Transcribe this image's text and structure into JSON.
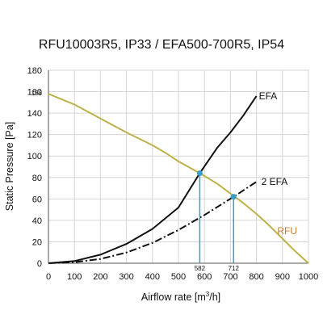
{
  "chart_data": {
    "type": "line",
    "title": "RFU10003R5, IP33 / EFA500-700R5, IP54",
    "xlabel": "Airflow rate [m³/h]",
    "xlabel_main": "Airflow rate [m",
    "xlabel_sup": "3",
    "xlabel_end": "/h]",
    "ylabel": "Static Pressure [Pa]",
    "xlim": [
      0,
      1000
    ],
    "ylim": [
      0,
      180
    ],
    "x_ticks": [
      0,
      100,
      200,
      300,
      400,
      500,
      600,
      700,
      800,
      900,
      1000
    ],
    "y_ticks": [
      0,
      20,
      40,
      60,
      80,
      100,
      120,
      140,
      160,
      180
    ],
    "grid": true,
    "series": [
      {
        "name": "RFU",
        "color": "#bdb24a",
        "dash": "solid",
        "x": [
          0,
          100,
          200,
          300,
          400,
          450,
          500,
          582,
          650,
          700,
          750,
          800,
          850,
          900,
          950,
          1000
        ],
        "y": [
          158,
          148,
          135,
          122,
          110,
          103,
          95,
          84,
          74,
          65,
          56,
          46,
          35,
          23,
          11,
          0
        ]
      },
      {
        "name": "EFA",
        "color": "#111111",
        "dash": "solid",
        "x": [
          0,
          100,
          200,
          300,
          400,
          500,
          582,
          650,
          700,
          750,
          800
        ],
        "y": [
          0,
          2,
          8,
          18,
          32,
          52,
          84,
          108,
          122,
          138,
          156
        ]
      },
      {
        "name": "2 EFA",
        "color": "#111111",
        "dash": "dashdot",
        "x": [
          0,
          100,
          200,
          300,
          400,
          500,
          600,
          712,
          800
        ],
        "y": [
          0,
          1,
          4,
          10,
          19,
          31,
          45,
          62,
          76
        ]
      }
    ],
    "annotations": {
      "y_marker_label": "158",
      "y_marker_value": 158,
      "operating_points": [
        {
          "x": 582,
          "y": 84,
          "label": "582"
        },
        {
          "x": 712,
          "y": 62,
          "label": "712"
        }
      ],
      "marker_color": "#3a9ec9"
    },
    "label_colors": {
      "rfu": "#c87832",
      "efa": "#111111"
    }
  }
}
